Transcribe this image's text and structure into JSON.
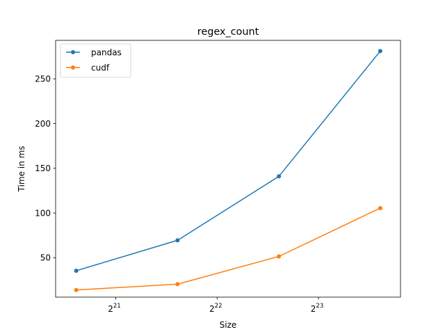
{
  "chart_data": {
    "type": "line",
    "title": "regex_count",
    "xlabel": "Size",
    "ylabel": "Time in ms",
    "x_scale": "log2",
    "x": [
      1600000,
      3200000,
      6400000,
      12800000
    ],
    "x_ticks": [
      {
        "value": 2097152,
        "base": "2",
        "exp": "21"
      },
      {
        "value": 4194304,
        "base": "2",
        "exp": "22"
      },
      {
        "value": 8388608,
        "base": "2",
        "exp": "23"
      }
    ],
    "y_ticks": [
      50,
      100,
      150,
      200,
      250
    ],
    "xlim": [
      1390000,
      14700000
    ],
    "ylim": [
      6,
      293
    ],
    "grid": false,
    "legend_position": "top-left",
    "series": [
      {
        "name": "pandas",
        "color": "#1f77b4",
        "values": [
          35.5,
          69.5,
          141,
          281
        ]
      },
      {
        "name": "cudf",
        "color": "#ff7f0e",
        "values": [
          14,
          20.5,
          51.5,
          105.5
        ]
      }
    ]
  }
}
